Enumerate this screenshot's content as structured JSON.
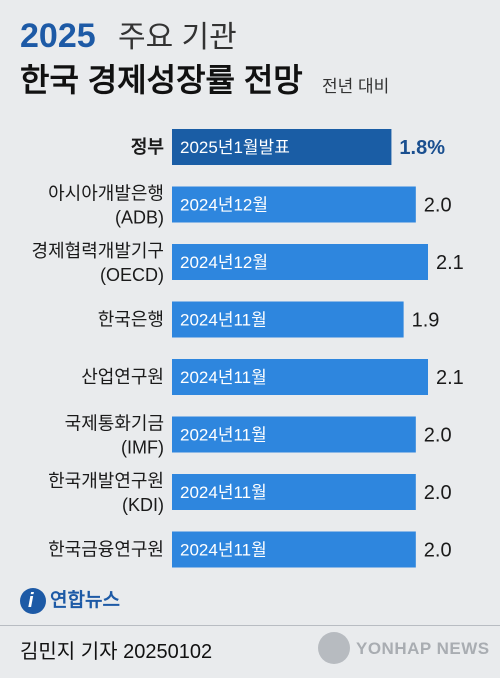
{
  "header": {
    "year": "2025",
    "subtitle": "주요 기관",
    "title": "한국 경제성장률 전망",
    "note": "전년 대비"
  },
  "chart_data": {
    "type": "bar",
    "orientation": "horizontal",
    "title": "2025 주요 기관 한국 경제성장률 전망",
    "subtitle": "전년 대비",
    "categories": [
      [
        "정부"
      ],
      [
        "아시아개발은행",
        "(ADB)"
      ],
      [
        "경제협력개발기구",
        "(OECD)"
      ],
      [
        "한국은행"
      ],
      [
        "산업연구원"
      ],
      [
        "국제통화기금",
        "(IMF)"
      ],
      [
        "한국개발연구원",
        "(KDI)"
      ],
      [
        "한국금융연구원"
      ]
    ],
    "bar_labels": [
      "2025년1월발표",
      "2024년12월",
      "2024년12월",
      "2024년11월",
      "2024년11월",
      "2024년11월",
      "2024년11월",
      "2024년11월"
    ],
    "values": [
      1.8,
      2.0,
      2.1,
      1.9,
      2.1,
      2.0,
      2.0,
      2.0
    ],
    "value_labels": [
      "1.8%",
      "2.0",
      "2.1",
      "1.9",
      "2.1",
      "2.0",
      "2.0",
      "2.0"
    ],
    "highlight_index": 0,
    "colors": {
      "highlight": "#1a5da5",
      "bar": "#2e86de",
      "highlight_text": "#1a4f8f",
      "text": "#1a1a1a"
    },
    "xlim": [
      0,
      2.1
    ],
    "grid": false,
    "legend": "none"
  },
  "footer": {
    "logo_text": "연합뉴스",
    "reporter": "김민지 기자  20250102",
    "watermark": "YONHAP NEWS"
  }
}
